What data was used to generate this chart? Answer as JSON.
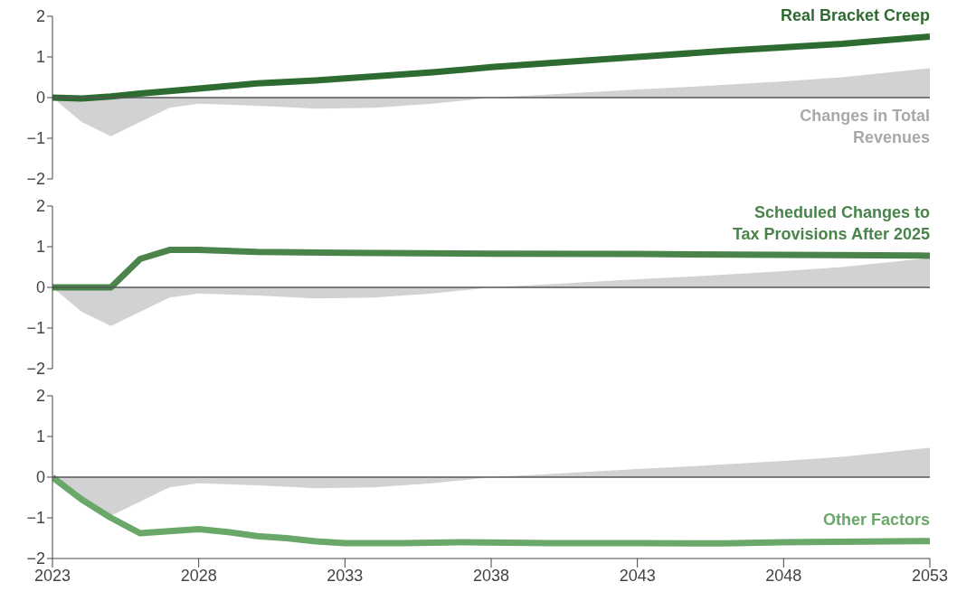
{
  "chart_data": [
    {
      "type": "line",
      "xlim": [
        2023,
        2053
      ],
      "xticks": [
        2023,
        2028,
        2033,
        2038,
        2043,
        2048,
        2053
      ],
      "ylim": [
        -2,
        2
      ],
      "yticks": [
        -2,
        -1,
        0,
        1,
        2
      ],
      "tick_labels": "y",
      "grid": false,
      "legend": false,
      "marker": "none",
      "ref_lines": [
        {
          "axis": "y",
          "value": 0,
          "color": "#555555"
        }
      ],
      "series": [
        {
          "type": "area",
          "name": "Changes in Total Revenues",
          "color": "#d1d2d4",
          "x": [
            2023,
            2024,
            2025,
            2026,
            2027,
            2028,
            2030,
            2032,
            2034,
            2036,
            2038,
            2040,
            2043,
            2045,
            2048,
            2050,
            2053
          ],
          "values": [
            0,
            -0.6,
            -0.95,
            -0.6,
            -0.25,
            -0.15,
            -0.2,
            -0.27,
            -0.25,
            -0.15,
            0,
            0.08,
            0.2,
            0.27,
            0.4,
            0.5,
            0.72
          ]
        },
        {
          "name": "Real Bracket Creep",
          "color": "#2e6b30",
          "x": [
            2023,
            2024,
            2025,
            2026,
            2028,
            2030,
            2032,
            2034,
            2036,
            2038,
            2040,
            2043,
            2046,
            2050,
            2053
          ],
          "values": [
            0,
            -0.02,
            0.03,
            0.1,
            0.22,
            0.35,
            0.42,
            0.52,
            0.62,
            0.75,
            0.85,
            1.0,
            1.15,
            1.32,
            1.5
          ]
        }
      ]
    },
    {
      "type": "line",
      "xlim": [
        2023,
        2053
      ],
      "xticks": [
        2023,
        2028,
        2033,
        2038,
        2043,
        2048,
        2053
      ],
      "ylim": [
        -2,
        2
      ],
      "yticks": [
        -2,
        -1,
        0,
        1,
        2
      ],
      "tick_labels": "y",
      "grid": false,
      "legend": false,
      "marker": "none",
      "ref_lines": [
        {
          "axis": "y",
          "value": 0,
          "color": "#555555"
        }
      ],
      "series": [
        {
          "type": "area",
          "color": "#d1d2d4",
          "x": [
            2023,
            2024,
            2025,
            2026,
            2027,
            2028,
            2030,
            2032,
            2034,
            2036,
            2038,
            2040,
            2043,
            2045,
            2048,
            2050,
            2053
          ],
          "values": [
            0,
            -0.6,
            -0.95,
            -0.6,
            -0.25,
            -0.15,
            -0.2,
            -0.27,
            -0.25,
            -0.15,
            0,
            0.08,
            0.2,
            0.27,
            0.4,
            0.5,
            0.72
          ]
        },
        {
          "name": "Scheduled Changes to Tax Provisions After 2025",
          "color": "#4a844a",
          "x": [
            2023,
            2024,
            2025,
            2026,
            2027,
            2028,
            2030,
            2033,
            2038,
            2043,
            2048,
            2053
          ],
          "values": [
            0,
            0,
            0,
            0.7,
            0.92,
            0.92,
            0.87,
            0.85,
            0.83,
            0.82,
            0.8,
            0.78
          ]
        }
      ]
    },
    {
      "type": "line",
      "xlim": [
        2023,
        2053
      ],
      "xticks": [
        2023,
        2028,
        2033,
        2038,
        2043,
        2048,
        2053
      ],
      "ylim": [
        -2,
        2
      ],
      "yticks": [
        -2,
        -1,
        0,
        1,
        2
      ],
      "grid": false,
      "legend": false,
      "marker": "none",
      "ref_lines": [
        {
          "axis": "y",
          "value": 0,
          "color": "#555555"
        }
      ],
      "series": [
        {
          "type": "area",
          "color": "#d1d2d4",
          "x": [
            2023,
            2024,
            2025,
            2026,
            2027,
            2028,
            2030,
            2032,
            2034,
            2036,
            2038,
            2040,
            2043,
            2045,
            2048,
            2050,
            2053
          ],
          "values": [
            0,
            -0.6,
            -0.95,
            -0.6,
            -0.25,
            -0.15,
            -0.2,
            -0.27,
            -0.25,
            -0.15,
            0,
            0.08,
            0.2,
            0.27,
            0.4,
            0.5,
            0.72
          ]
        },
        {
          "name": "Other Factors",
          "color": "#6aa86a",
          "x": [
            2023,
            2024,
            2025,
            2026,
            2027,
            2028,
            2029,
            2030,
            2031,
            2032,
            2033,
            2035,
            2037,
            2040,
            2043,
            2046,
            2048,
            2053
          ],
          "values": [
            0,
            -0.55,
            -1.0,
            -1.38,
            -1.33,
            -1.28,
            -1.35,
            -1.45,
            -1.5,
            -1.58,
            -1.62,
            -1.62,
            -1.6,
            -1.62,
            -1.62,
            -1.63,
            -1.6,
            -1.57
          ]
        }
      ]
    }
  ]
}
